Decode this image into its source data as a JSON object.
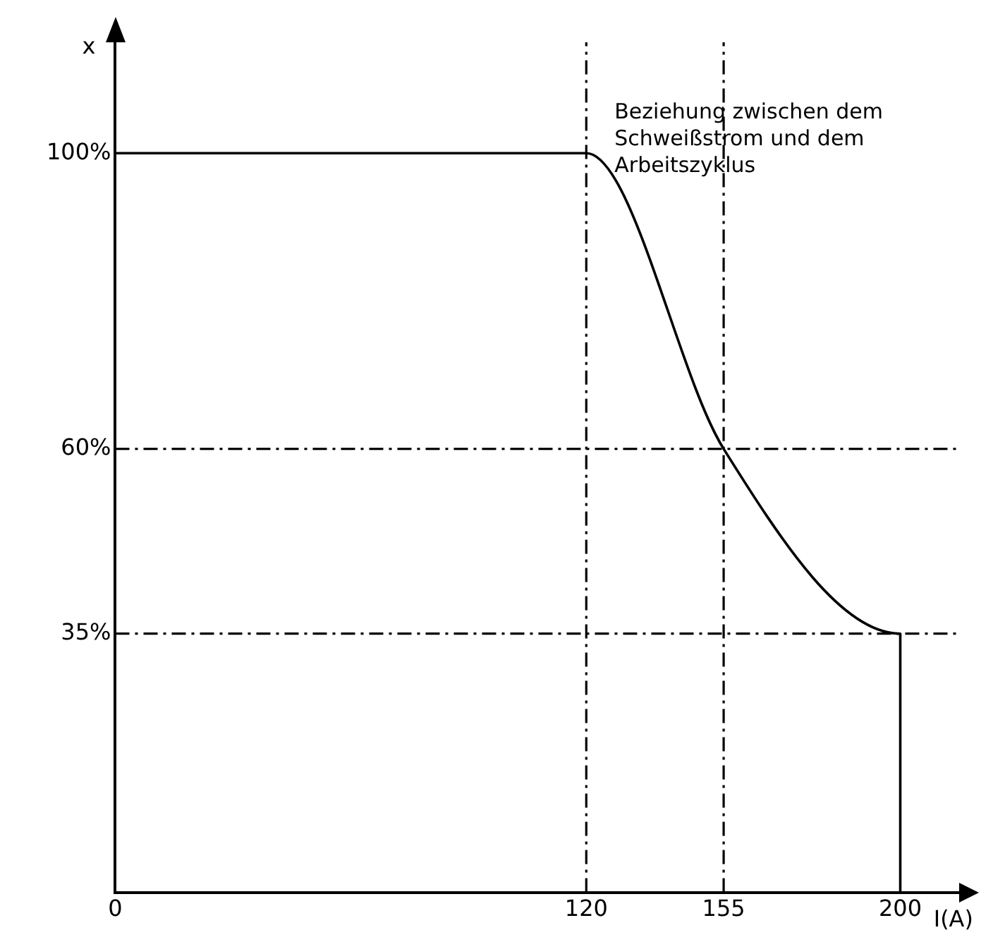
{
  "chart_data": {
    "type": "line",
    "xlabel": "I(A)",
    "ylabel": "x",
    "x": [
      0,
      120,
      155,
      200,
      200
    ],
    "series": [
      {
        "color": "#000000",
        "values": [
          100,
          100,
          60,
          35,
          0
        ]
      }
    ],
    "xlim": [
      0,
      215
    ],
    "xticks": [
      0,
      120,
      155,
      200
    ],
    "ylim": [
      0,
      115
    ],
    "yticks": [
      {
        "value": 35,
        "label": "35%"
      },
      {
        "value": 60,
        "label": "60%"
      },
      {
        "value": 100,
        "label": "100%"
      }
    ],
    "ref_lines": [
      {
        "axis": "x",
        "value": 120,
        "line_style": "dashed",
        "color": "#000000"
      },
      {
        "axis": "x",
        "value": 155,
        "line_style": "dashed",
        "color": "#000000"
      },
      {
        "axis": "y",
        "value": 60,
        "line_style": "dashed",
        "color": "#000000"
      },
      {
        "axis": "y",
        "value": 35,
        "line_style": "dashed",
        "color": "#000000"
      }
    ],
    "annotations": [
      "Beziehung zwischen dem Schweißstrom und dem Arbeitszyklus"
    ],
    "grid": false,
    "legend": false,
    "marker": "none",
    "line_style": "solid"
  }
}
